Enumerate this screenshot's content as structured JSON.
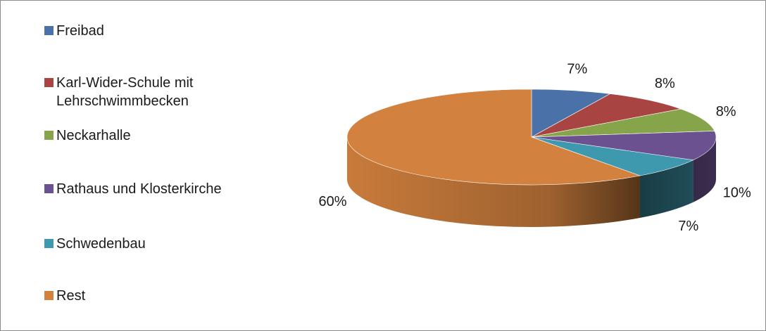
{
  "chart_data": {
    "type": "pie",
    "style": "3d",
    "categories": [
      "Freibad",
      "Karl-Wider-Schule mit Lehrschwimmbecken",
      "Neckarhalle",
      "Rathaus und Klosterkirche",
      "Schwedenbau",
      "Rest"
    ],
    "values": [
      7,
      8,
      8,
      10,
      7,
      60
    ],
    "data_labels": [
      "7%",
      "8%",
      "8%",
      "10%",
      "7%",
      "60%"
    ],
    "colors": [
      "#4a72a8",
      "#a84442",
      "#86a44a",
      "#6c5190",
      "#3e98ae",
      "#d2813e"
    ],
    "legend_position": "left",
    "title": ""
  }
}
